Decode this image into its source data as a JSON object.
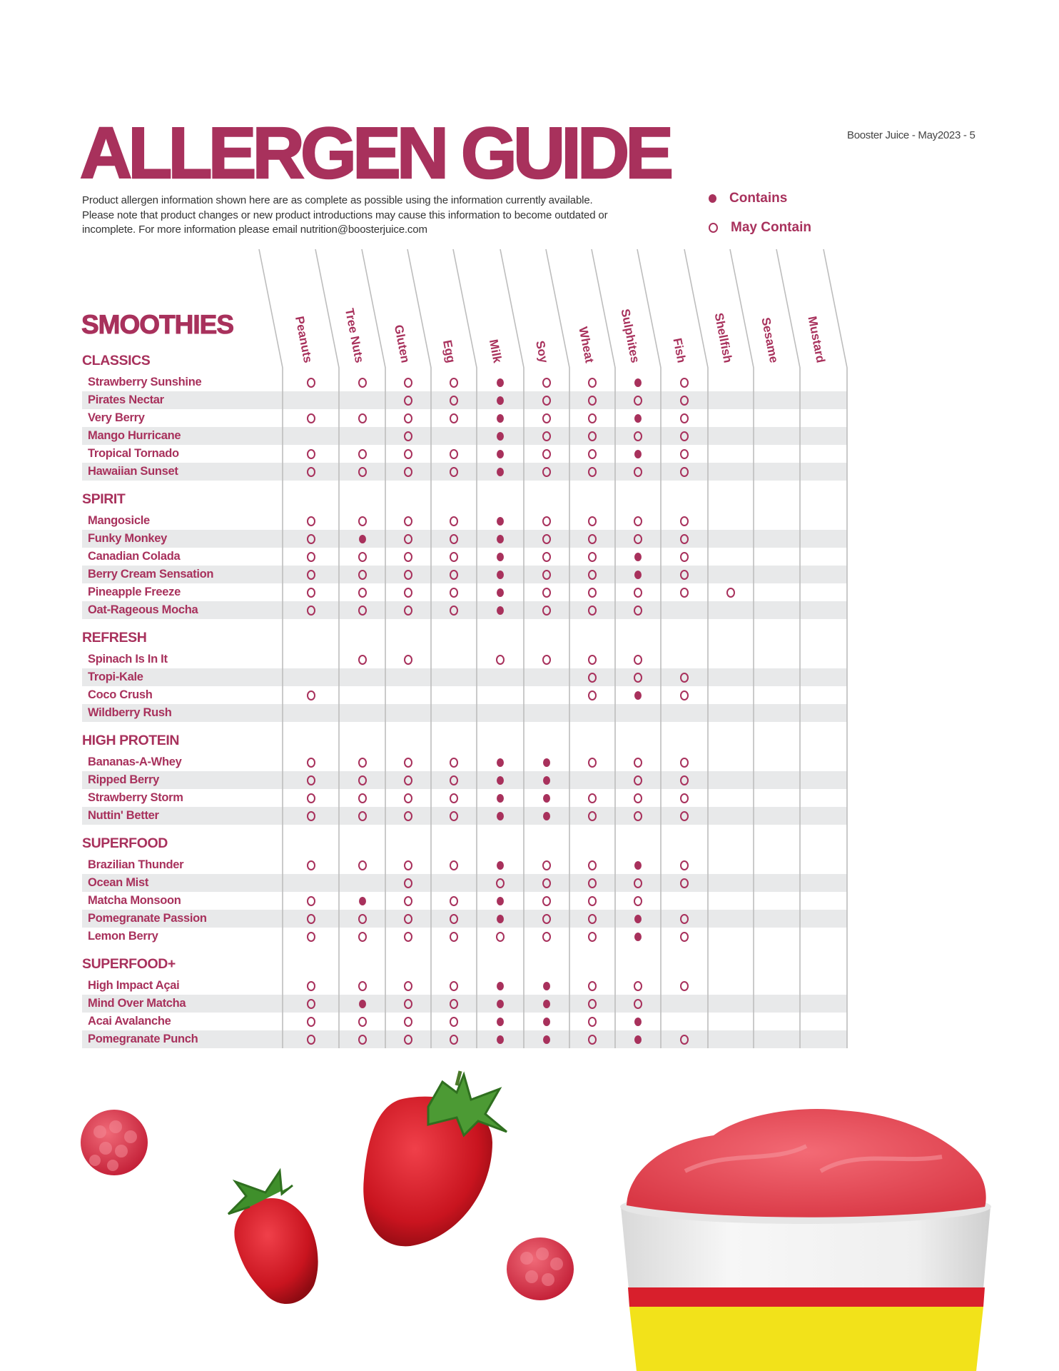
{
  "header": {
    "title": "ALLERGEN GUIDE",
    "page_ref": "Booster Juice - May2023 - 5",
    "intro_lines": [
      "Product allergen information shown here are as complete as possible using the information currently available.",
      "Please note that product changes or new product introductions may cause this information to become outdated or",
      "incomplete. For more information please email  nutrition@boosterjuice.com"
    ]
  },
  "legend": {
    "contains": "Contains",
    "may_contain": "May Contain"
  },
  "colors": {
    "brand": "#a8315c",
    "stripe": "#e8e9ea",
    "grid": "#bdbdbd"
  },
  "symbol_key": {
    "C": "contains (filled dot)",
    "M": "may contain (open ring)",
    "-": "none"
  },
  "category": "SMOOTHIES",
  "allergens": [
    "Peanuts",
    "Tree Nuts",
    "Gluten",
    "Egg",
    "Milk",
    "Soy",
    "Wheat",
    "Sulphites",
    "Fish",
    "Shellfish",
    "Sesame",
    "Mustard"
  ],
  "sections": [
    {
      "name": "CLASSICS",
      "items": [
        {
          "name": "Strawberry Sunshine",
          "marks": "MMMMCMMCM"
        },
        {
          "name": "Pirates Nectar",
          "marks": "--MMCMMMM"
        },
        {
          "name": "Very Berry",
          "marks": "MMMMCMMCM"
        },
        {
          "name": "Mango Hurricane",
          "marks": "--M-CMMMM"
        },
        {
          "name": "Tropical Tornado",
          "marks": "MMMMCMMCM"
        },
        {
          "name": "Hawaiian Sunset",
          "marks": "MMMMCMMMM"
        }
      ]
    },
    {
      "name": "SPIRIT",
      "items": [
        {
          "name": "Mangosicle",
          "marks": "MMMMCMMMM"
        },
        {
          "name": "Funky Monkey",
          "marks": "MCMMCMMMM"
        },
        {
          "name": "Canadian Colada",
          "marks": "MMMMCMMCM"
        },
        {
          "name": "Berry Cream Sensation",
          "marks": "MMMMCMMCM"
        },
        {
          "name": "Pineapple Freeze",
          "marks": "MMMMCMMMMM"
        },
        {
          "name": "Oat-Rageous Mocha",
          "marks": "MMMMCMMM"
        }
      ]
    },
    {
      "name": "REFRESH",
      "items": [
        {
          "name": "Spinach Is In It",
          "marks": "-MM-MMMM"
        },
        {
          "name": "Tropi-Kale",
          "marks": "------MMM"
        },
        {
          "name": "Coco Crush",
          "marks": "M-----MCM"
        },
        {
          "name": "Wildberry Rush",
          "marks": ""
        }
      ]
    },
    {
      "name": "HIGH PROTEIN",
      "items": [
        {
          "name": "Bananas-A-Whey",
          "marks": "MMMMCCMMM"
        },
        {
          "name": "Ripped Berry",
          "marks": "MMMMCC-MM"
        },
        {
          "name": "Strawberry Storm",
          "marks": "MMMMCCMMM"
        },
        {
          "name": "Nuttin' Better",
          "marks": "MMMMCCMMM"
        }
      ]
    },
    {
      "name": "SUPERFOOD",
      "items": [
        {
          "name": "Brazilian Thunder",
          "marks": "MMMMCMMCM"
        },
        {
          "name": "Ocean Mist",
          "marks": "--M-MMMMM"
        },
        {
          "name": "Matcha Monsoon",
          "marks": "MCMMCMMM"
        },
        {
          "name": "Pomegranate Passion",
          "marks": "MMMMCMMCM"
        },
        {
          "name": "Lemon Berry",
          "marks": "MMMMMMMCM"
        }
      ]
    },
    {
      "name": "SUPERFOOD+",
      "items": [
        {
          "name": "High Impact Açai",
          "marks": "MMMMCCMMM"
        },
        {
          "name": "Mind Over Matcha",
          "marks": "MCMMCCMM"
        },
        {
          "name": "Acai Avalanche",
          "marks": "MMMMCCMC"
        },
        {
          "name": "Pomegranate Punch",
          "marks": "MMMMCCMCM"
        }
      ]
    }
  ]
}
